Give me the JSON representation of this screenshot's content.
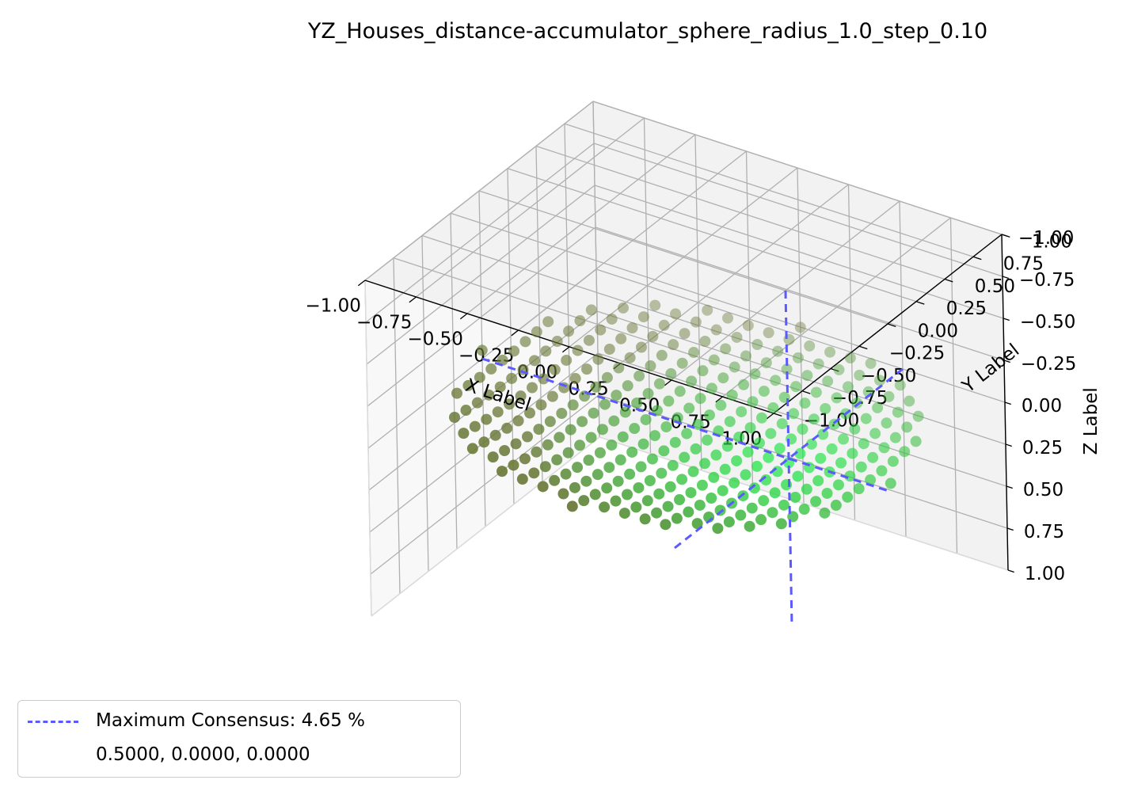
{
  "chart_data": {
    "type": "scatter3d",
    "title": "YZ_Houses_distance-accumulator_sphere_radius_1.0_step_0.10",
    "xlabel": "X Label",
    "ylabel": "Y Label",
    "zlabel": "Z Label",
    "xlim": [
      -1.0,
      1.0
    ],
    "ylim": [
      -1.0,
      1.0
    ],
    "zlim": [
      -1.0,
      1.0
    ],
    "ticks": [
      "−1.00",
      "−0.75",
      "−0.50",
      "−0.25",
      "0.00",
      "0.25",
      "0.50",
      "0.75",
      "1.00"
    ],
    "grid": true,
    "points": {
      "description_of_sampling": "disc of points x^2+y^2<=1 on grid step 0.10, z≈0 (slightly curved)",
      "step": 0.1,
      "radius": 1.0,
      "color_low": "#6b7a3a",
      "color_high": "#10f040"
    },
    "maximum": {
      "x": 0.5,
      "y": 0.0,
      "z": 0.0,
      "color": "#5a5aff"
    },
    "legend": {
      "line1": "Maximum Consensus: 4.65 %",
      "line2": "0.5000, 0.0000, 0.0000",
      "placement": "lower-left"
    }
  }
}
